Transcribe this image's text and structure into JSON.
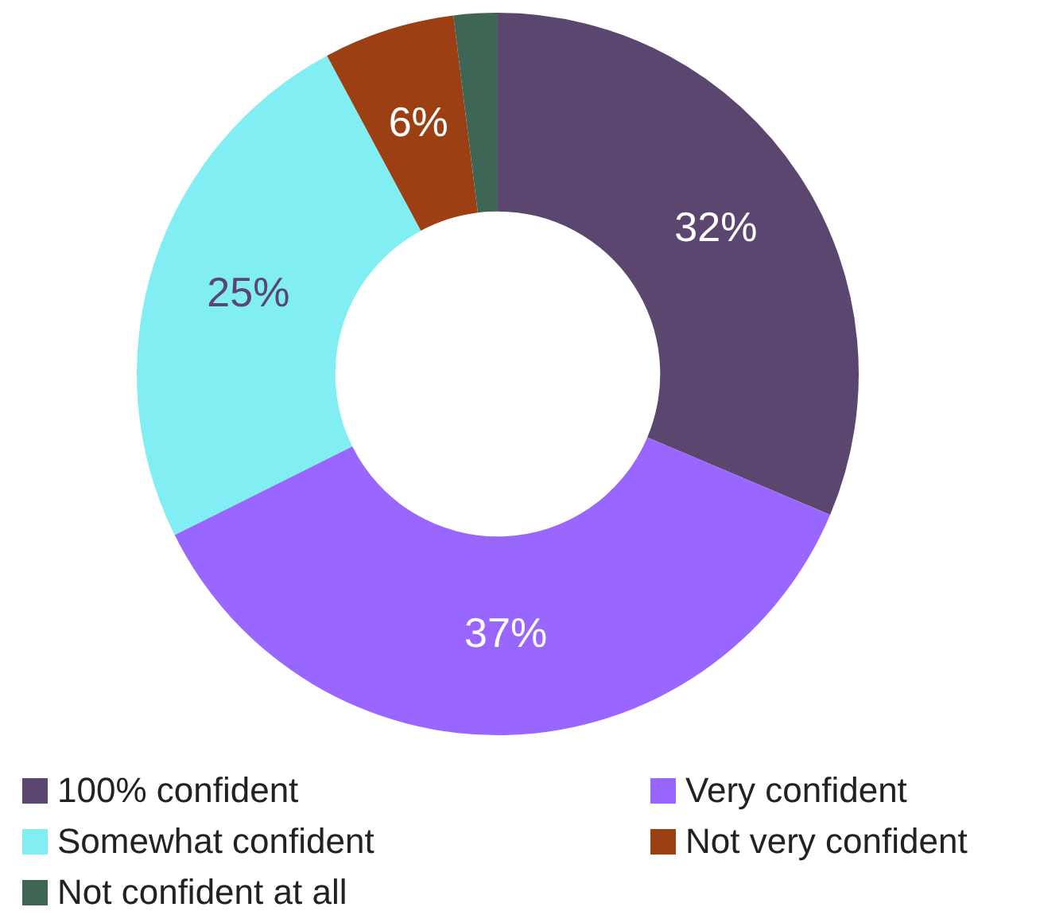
{
  "chart_data": {
    "type": "donut",
    "categories": [
      "100% confident",
      "Very confident",
      "Somewhat confident",
      "Not very confident",
      "Not confident at all"
    ],
    "values": [
      32,
      37,
      25,
      6,
      2
    ],
    "colors": [
      "#5b4670",
      "#9966ff",
      "#80eef2",
      "#9c3f12",
      "#3e6655"
    ],
    "value_labels": [
      "32%",
      "37%",
      "25%",
      "6%",
      null
    ],
    "legend": "bottom"
  }
}
